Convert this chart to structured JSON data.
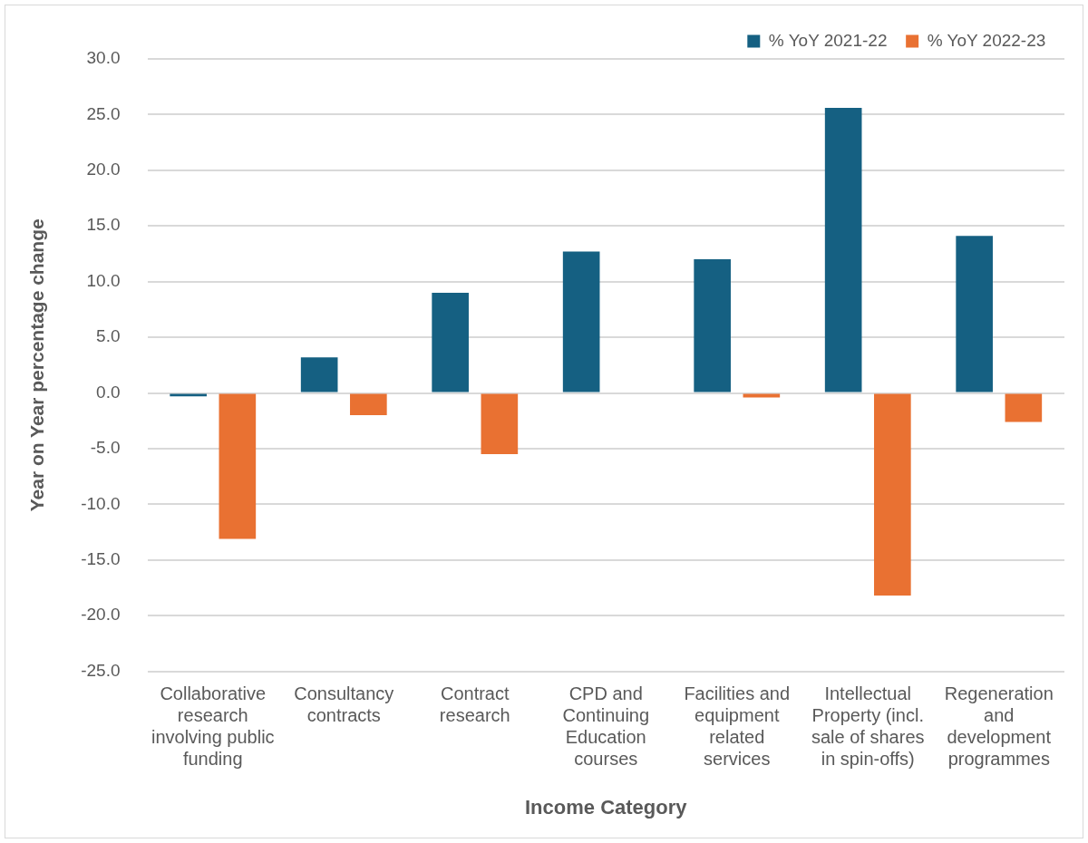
{
  "chart_data": {
    "type": "bar",
    "xlabel": "Income Category",
    "ylabel": "Year on Year percentage change",
    "categories": [
      "Collaborative research involving public funding",
      "Consultancy contracts",
      "Contract research",
      "CPD and Continuing Education courses",
      "Facilities and equipment related services",
      "Intellectual Property (incl. sale of shares in spin-offs)",
      "Regeneration and development programmes"
    ],
    "series": [
      {
        "name": "% YoY 2021-22",
        "color": "#156082",
        "values": [
          -0.3,
          3.2,
          9.0,
          12.7,
          12.0,
          25.6,
          14.1
        ]
      },
      {
        "name": "% YoY 2022-23",
        "color": "#e97132",
        "values": [
          -13.1,
          -2.0,
          -5.5,
          0,
          -0.4,
          -18.2,
          -2.6
        ]
      }
    ],
    "ylim": [
      -25,
      30
    ],
    "yticks": [
      {
        "value": -25,
        "label": "-25.0"
      },
      {
        "value": -20,
        "label": "-20.0"
      },
      {
        "value": -15,
        "label": "-15.0"
      },
      {
        "value": -10,
        "label": "-10.0"
      },
      {
        "value": -5,
        "label": "-5.0"
      },
      {
        "value": 0,
        "label": "0.0"
      },
      {
        "value": 5,
        "label": "5.0"
      },
      {
        "value": 10,
        "label": "10.0"
      },
      {
        "value": 15,
        "label": "15.0"
      },
      {
        "value": 20,
        "label": "20.0"
      },
      {
        "value": 25,
        "label": "25.0"
      },
      {
        "value": 30,
        "label": "30.0"
      }
    ],
    "grid": "y",
    "legend": "top right"
  }
}
